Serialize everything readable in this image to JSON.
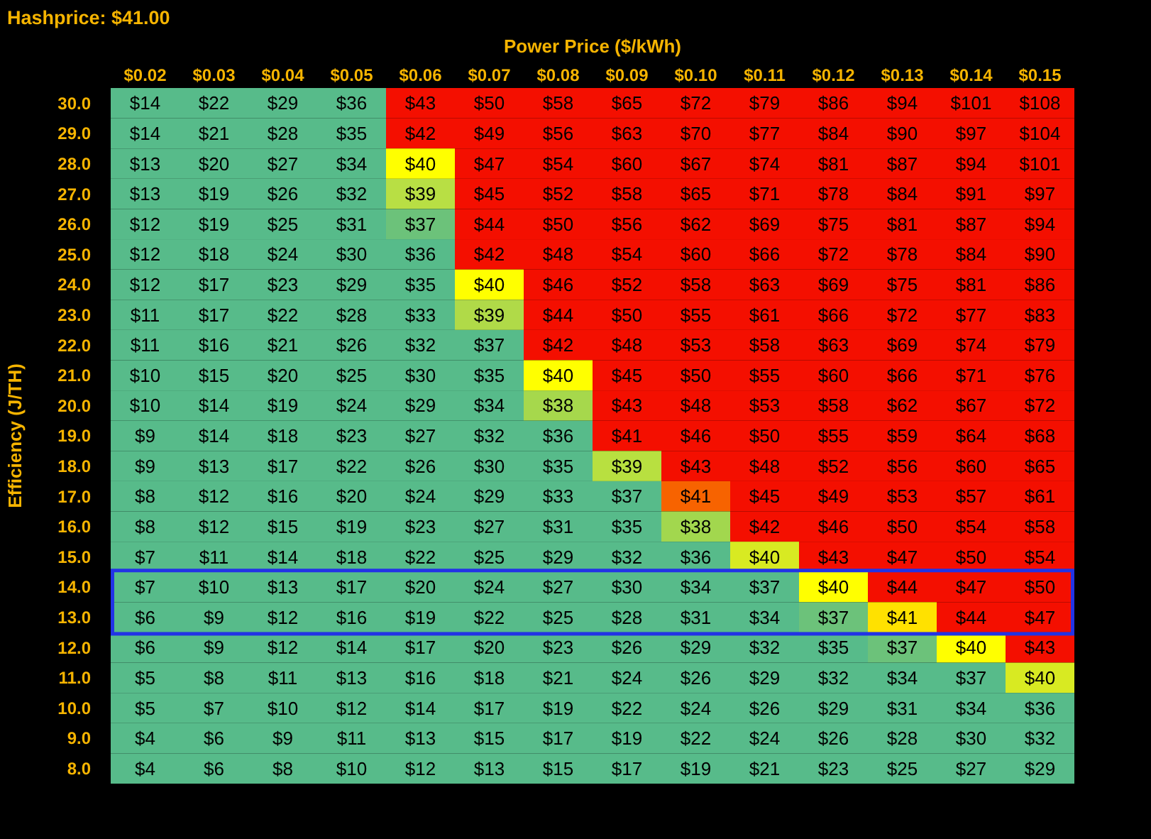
{
  "chart_data": {
    "type": "heatmap",
    "title": "Hashprice: $41.00",
    "xlabel": "Power Price ($/kWh)",
    "ylabel": "Efficiency (J/TH)",
    "categories": [
      "$0.02",
      "$0.03",
      "$0.04",
      "$0.05",
      "$0.06",
      "$0.07",
      "$0.08",
      "$0.09",
      "$0.10",
      "$0.11",
      "$0.12",
      "$0.13",
      "$0.14",
      "$0.15"
    ],
    "y_categories": [
      "30.0",
      "29.0",
      "28.0",
      "27.0",
      "26.0",
      "25.0",
      "24.0",
      "23.0",
      "22.0",
      "21.0",
      "20.0",
      "19.0",
      "18.0",
      "17.0",
      "16.0",
      "15.0",
      "14.0",
      "13.0",
      "12.0",
      "11.0",
      "10.0",
      "9.0",
      "8.0"
    ],
    "cells": [
      [
        14,
        22,
        29,
        36,
        43,
        50,
        58,
        65,
        72,
        79,
        86,
        94,
        101,
        108
      ],
      [
        14,
        21,
        28,
        35,
        42,
        49,
        56,
        63,
        70,
        77,
        84,
        90,
        97,
        104
      ],
      [
        13,
        20,
        27,
        34,
        40,
        47,
        54,
        60,
        67,
        74,
        81,
        87,
        94,
        101
      ],
      [
        13,
        19,
        26,
        32,
        39,
        45,
        52,
        58,
        65,
        71,
        78,
        84,
        91,
        97
      ],
      [
        12,
        19,
        25,
        31,
        37,
        44,
        50,
        56,
        62,
        69,
        75,
        81,
        87,
        94
      ],
      [
        12,
        18,
        24,
        30,
        36,
        42,
        48,
        54,
        60,
        66,
        72,
        78,
        84,
        90
      ],
      [
        12,
        17,
        23,
        29,
        35,
        40,
        46,
        52,
        58,
        63,
        69,
        75,
        81,
        86
      ],
      [
        11,
        17,
        22,
        28,
        33,
        39,
        44,
        50,
        55,
        61,
        66,
        72,
        77,
        83
      ],
      [
        11,
        16,
        21,
        26,
        32,
        37,
        42,
        48,
        53,
        58,
        63,
        69,
        74,
        79
      ],
      [
        10,
        15,
        20,
        25,
        30,
        35,
        40,
        45,
        50,
        55,
        60,
        66,
        71,
        76
      ],
      [
        10,
        14,
        19,
        24,
        29,
        34,
        38,
        43,
        48,
        53,
        58,
        62,
        67,
        72
      ],
      [
        9,
        14,
        18,
        23,
        27,
        32,
        36,
        41,
        46,
        50,
        55,
        59,
        64,
        68
      ],
      [
        9,
        13,
        17,
        22,
        26,
        30,
        35,
        39,
        43,
        48,
        52,
        56,
        60,
        65
      ],
      [
        8,
        12,
        16,
        20,
        24,
        29,
        33,
        37,
        41,
        45,
        49,
        53,
        57,
        61
      ],
      [
        8,
        12,
        15,
        19,
        23,
        27,
        31,
        35,
        38,
        42,
        46,
        50,
        54,
        58
      ],
      [
        7,
        11,
        14,
        18,
        22,
        25,
        29,
        32,
        36,
        40,
        43,
        47,
        50,
        54
      ],
      [
        7,
        10,
        13,
        17,
        20,
        24,
        27,
        30,
        34,
        37,
        40,
        44,
        47,
        50
      ],
      [
        6,
        9,
        12,
        16,
        19,
        22,
        25,
        28,
        31,
        34,
        37,
        41,
        44,
        47
      ],
      [
        6,
        9,
        12,
        14,
        17,
        20,
        23,
        26,
        29,
        32,
        35,
        37,
        40,
        43
      ],
      [
        5,
        8,
        11,
        13,
        16,
        18,
        21,
        24,
        26,
        29,
        32,
        34,
        37,
        40
      ],
      [
        5,
        7,
        10,
        12,
        14,
        17,
        19,
        22,
        24,
        26,
        29,
        31,
        34,
        36
      ],
      [
        4,
        6,
        9,
        11,
        13,
        15,
        17,
        19,
        22,
        24,
        26,
        28,
        30,
        32
      ],
      [
        4,
        6,
        8,
        10,
        12,
        13,
        15,
        17,
        19,
        21,
        23,
        25,
        27,
        29
      ]
    ],
    "cell_labels": [
      [
        "$14",
        "$22",
        "$29",
        "$36",
        "$43",
        "$50",
        "$58",
        "$65",
        "$72",
        "$79",
        "$86",
        "$94",
        "$101",
        "$108"
      ],
      [
        "$14",
        "$21",
        "$28",
        "$35",
        "$42",
        "$49",
        "$56",
        "$63",
        "$70",
        "$77",
        "$84",
        "$90",
        "$97",
        "$104"
      ],
      [
        "$13",
        "$20",
        "$27",
        "$34",
        "$40",
        "$47",
        "$54",
        "$60",
        "$67",
        "$74",
        "$81",
        "$87",
        "$94",
        "$101"
      ],
      [
        "$13",
        "$19",
        "$26",
        "$32",
        "$39",
        "$45",
        "$52",
        "$58",
        "$65",
        "$71",
        "$78",
        "$84",
        "$91",
        "$97"
      ],
      [
        "$12",
        "$19",
        "$25",
        "$31",
        "$37",
        "$44",
        "$50",
        "$56",
        "$62",
        "$69",
        "$75",
        "$81",
        "$87",
        "$94"
      ],
      [
        "$12",
        "$18",
        "$24",
        "$30",
        "$36",
        "$42",
        "$48",
        "$54",
        "$60",
        "$66",
        "$72",
        "$78",
        "$84",
        "$90"
      ],
      [
        "$12",
        "$17",
        "$23",
        "$29",
        "$35",
        "$40",
        "$46",
        "$52",
        "$58",
        "$63",
        "$69",
        "$75",
        "$81",
        "$86"
      ],
      [
        "$11",
        "$17",
        "$22",
        "$28",
        "$33",
        "$39",
        "$44",
        "$50",
        "$55",
        "$61",
        "$66",
        "$72",
        "$77",
        "$83"
      ],
      [
        "$11",
        "$16",
        "$21",
        "$26",
        "$32",
        "$37",
        "$42",
        "$48",
        "$53",
        "$58",
        "$63",
        "$69",
        "$74",
        "$79"
      ],
      [
        "$10",
        "$15",
        "$20",
        "$25",
        "$30",
        "$35",
        "$40",
        "$45",
        "$50",
        "$55",
        "$60",
        "$66",
        "$71",
        "$76"
      ],
      [
        "$10",
        "$14",
        "$19",
        "$24",
        "$29",
        "$34",
        "$38",
        "$43",
        "$48",
        "$53",
        "$58",
        "$62",
        "$67",
        "$72"
      ],
      [
        "$9",
        "$14",
        "$18",
        "$23",
        "$27",
        "$32",
        "$36",
        "$41",
        "$46",
        "$50",
        "$55",
        "$59",
        "$64",
        "$68"
      ],
      [
        "$9",
        "$13",
        "$17",
        "$22",
        "$26",
        "$30",
        "$35",
        "$39",
        "$43",
        "$48",
        "$52",
        "$56",
        "$60",
        "$65"
      ],
      [
        "$8",
        "$12",
        "$16",
        "$20",
        "$24",
        "$29",
        "$33",
        "$37",
        "$41",
        "$45",
        "$49",
        "$53",
        "$57",
        "$61"
      ],
      [
        "$8",
        "$12",
        "$15",
        "$19",
        "$23",
        "$27",
        "$31",
        "$35",
        "$38",
        "$42",
        "$46",
        "$50",
        "$54",
        "$58"
      ],
      [
        "$7",
        "$11",
        "$14",
        "$18",
        "$22",
        "$25",
        "$29",
        "$32",
        "$36",
        "$40",
        "$43",
        "$47",
        "$50",
        "$54"
      ],
      [
        "$7",
        "$10",
        "$13",
        "$17",
        "$20",
        "$24",
        "$27",
        "$30",
        "$34",
        "$37",
        "$40",
        "$44",
        "$47",
        "$50"
      ],
      [
        "$6",
        "$9",
        "$12",
        "$16",
        "$19",
        "$22",
        "$25",
        "$28",
        "$31",
        "$34",
        "$37",
        "$41",
        "$44",
        "$47"
      ],
      [
        "$6",
        "$9",
        "$12",
        "$14",
        "$17",
        "$20",
        "$23",
        "$26",
        "$29",
        "$32",
        "$35",
        "$37",
        "$40",
        "$43"
      ],
      [
        "$5",
        "$8",
        "$11",
        "$13",
        "$16",
        "$18",
        "$21",
        "$24",
        "$26",
        "$29",
        "$32",
        "$34",
        "$37",
        "$40"
      ],
      [
        "$5",
        "$7",
        "$10",
        "$12",
        "$14",
        "$17",
        "$19",
        "$22",
        "$24",
        "$26",
        "$29",
        "$31",
        "$34",
        "$36"
      ],
      [
        "$4",
        "$6",
        "$9",
        "$11",
        "$13",
        "$15",
        "$17",
        "$19",
        "$22",
        "$24",
        "$26",
        "$28",
        "$30",
        "$32"
      ],
      [
        "$4",
        "$6",
        "$8",
        "$10",
        "$12",
        "$13",
        "$15",
        "$17",
        "$19",
        "$21",
        "$23",
        "$25",
        "$27",
        "$29"
      ]
    ],
    "colors": [
      [
        "#57bb8a",
        "#57bb8a",
        "#57bb8a",
        "#57bb8a",
        "#f40f00",
        "#f40f00",
        "#f40f00",
        "#f40f00",
        "#f40f00",
        "#f40f00",
        "#f40f00",
        "#f40f00",
        "#f40f00",
        "#f40f00"
      ],
      [
        "#57bb8a",
        "#57bb8a",
        "#57bb8a",
        "#57bb8a",
        "#f40f00",
        "#f40f00",
        "#f40f00",
        "#f40f00",
        "#f40f00",
        "#f40f00",
        "#f40f00",
        "#f40f00",
        "#f40f00",
        "#f40f00"
      ],
      [
        "#57bb8a",
        "#57bb8a",
        "#57bb8a",
        "#57bb8a",
        "#ffff00",
        "#f40f00",
        "#f40f00",
        "#f40f00",
        "#f40f00",
        "#f40f00",
        "#f40f00",
        "#f40f00",
        "#f40f00",
        "#f40f00"
      ],
      [
        "#57bb8a",
        "#57bb8a",
        "#57bb8a",
        "#57bb8a",
        "#b8df44",
        "#f40f00",
        "#f40f00",
        "#f40f00",
        "#f40f00",
        "#f40f00",
        "#f40f00",
        "#f40f00",
        "#f40f00",
        "#f40f00"
      ],
      [
        "#57bb8a",
        "#57bb8a",
        "#57bb8a",
        "#57bb8a",
        "#6cc27a",
        "#f40f00",
        "#f40f00",
        "#f40f00",
        "#f40f00",
        "#f40f00",
        "#f40f00",
        "#f40f00",
        "#f40f00",
        "#f40f00"
      ],
      [
        "#57bb8a",
        "#57bb8a",
        "#57bb8a",
        "#57bb8a",
        "#57bb8a",
        "#f40f00",
        "#f40f00",
        "#f40f00",
        "#f40f00",
        "#f40f00",
        "#f40f00",
        "#f40f00",
        "#f40f00",
        "#f40f00"
      ],
      [
        "#57bb8a",
        "#57bb8a",
        "#57bb8a",
        "#57bb8a",
        "#57bb8a",
        "#ffff00",
        "#f40f00",
        "#f40f00",
        "#f40f00",
        "#f40f00",
        "#f40f00",
        "#f40f00",
        "#f40f00",
        "#f40f00"
      ],
      [
        "#57bb8a",
        "#57bb8a",
        "#57bb8a",
        "#57bb8a",
        "#57bb8a",
        "#b0da48",
        "#f40f00",
        "#f40f00",
        "#f40f00",
        "#f40f00",
        "#f40f00",
        "#f40f00",
        "#f40f00",
        "#f40f00"
      ],
      [
        "#57bb8a",
        "#57bb8a",
        "#57bb8a",
        "#57bb8a",
        "#57bb8a",
        "#57bb8a",
        "#f40f00",
        "#f40f00",
        "#f40f00",
        "#f40f00",
        "#f40f00",
        "#f40f00",
        "#f40f00",
        "#f40f00"
      ],
      [
        "#57bb8a",
        "#57bb8a",
        "#57bb8a",
        "#57bb8a",
        "#57bb8a",
        "#57bb8a",
        "#ffff00",
        "#f40f00",
        "#f40f00",
        "#f40f00",
        "#f40f00",
        "#f40f00",
        "#f40f00",
        "#f40f00"
      ],
      [
        "#57bb8a",
        "#57bb8a",
        "#57bb8a",
        "#57bb8a",
        "#57bb8a",
        "#57bb8a",
        "#a6d84c",
        "#f40f00",
        "#f40f00",
        "#f40f00",
        "#f40f00",
        "#f40f00",
        "#f40f00",
        "#f40f00"
      ],
      [
        "#57bb8a",
        "#57bb8a",
        "#57bb8a",
        "#57bb8a",
        "#57bb8a",
        "#57bb8a",
        "#57bb8a",
        "#f40f00",
        "#f40f00",
        "#f40f00",
        "#f40f00",
        "#f40f00",
        "#f40f00",
        "#f40f00"
      ],
      [
        "#57bb8a",
        "#57bb8a",
        "#57bb8a",
        "#57bb8a",
        "#57bb8a",
        "#57bb8a",
        "#57bb8a",
        "#b8e040",
        "#f40f00",
        "#f40f00",
        "#f40f00",
        "#f40f00",
        "#f40f00",
        "#f40f00"
      ],
      [
        "#57bb8a",
        "#57bb8a",
        "#57bb8a",
        "#57bb8a",
        "#57bb8a",
        "#57bb8a",
        "#57bb8a",
        "#57bb8a",
        "#f76300",
        "#f40f00",
        "#f40f00",
        "#f40f00",
        "#f40f00",
        "#f40f00"
      ],
      [
        "#57bb8a",
        "#57bb8a",
        "#57bb8a",
        "#57bb8a",
        "#57bb8a",
        "#57bb8a",
        "#57bb8a",
        "#57bb8a",
        "#a2d74e",
        "#f40f00",
        "#f40f00",
        "#f40f00",
        "#f40f00",
        "#f40f00"
      ],
      [
        "#57bb8a",
        "#57bb8a",
        "#57bb8a",
        "#57bb8a",
        "#57bb8a",
        "#57bb8a",
        "#57bb8a",
        "#57bb8a",
        "#57bb8a",
        "#d8ea22",
        "#f40f00",
        "#f40f00",
        "#f40f00",
        "#f40f00"
      ],
      [
        "#57bb8a",
        "#57bb8a",
        "#57bb8a",
        "#57bb8a",
        "#57bb8a",
        "#57bb8a",
        "#57bb8a",
        "#57bb8a",
        "#57bb8a",
        "#57bb8a",
        "#ffff00",
        "#f40f00",
        "#f40f00",
        "#f40f00"
      ],
      [
        "#57bb8a",
        "#57bb8a",
        "#57bb8a",
        "#57bb8a",
        "#57bb8a",
        "#57bb8a",
        "#57bb8a",
        "#57bb8a",
        "#57bb8a",
        "#57bb8a",
        "#6cc27a",
        "#ffe100",
        "#f40f00",
        "#f40f00"
      ],
      [
        "#57bb8a",
        "#57bb8a",
        "#57bb8a",
        "#57bb8a",
        "#57bb8a",
        "#57bb8a",
        "#57bb8a",
        "#57bb8a",
        "#57bb8a",
        "#57bb8a",
        "#57bb8a",
        "#6cc27a",
        "#ffff00",
        "#f40f00"
      ],
      [
        "#57bb8a",
        "#57bb8a",
        "#57bb8a",
        "#57bb8a",
        "#57bb8a",
        "#57bb8a",
        "#57bb8a",
        "#57bb8a",
        "#57bb8a",
        "#57bb8a",
        "#57bb8a",
        "#57bb8a",
        "#57bb8a",
        "#d8ea22"
      ],
      [
        "#57bb8a",
        "#57bb8a",
        "#57bb8a",
        "#57bb8a",
        "#57bb8a",
        "#57bb8a",
        "#57bb8a",
        "#57bb8a",
        "#57bb8a",
        "#57bb8a",
        "#57bb8a",
        "#57bb8a",
        "#57bb8a",
        "#57bb8a"
      ],
      [
        "#57bb8a",
        "#57bb8a",
        "#57bb8a",
        "#57bb8a",
        "#57bb8a",
        "#57bb8a",
        "#57bb8a",
        "#57bb8a",
        "#57bb8a",
        "#57bb8a",
        "#57bb8a",
        "#57bb8a",
        "#57bb8a",
        "#57bb8a"
      ],
      [
        "#57bb8a",
        "#57bb8a",
        "#57bb8a",
        "#57bb8a",
        "#57bb8a",
        "#57bb8a",
        "#57bb8a",
        "#57bb8a",
        "#57bb8a",
        "#57bb8a",
        "#57bb8a",
        "#57bb8a",
        "#57bb8a",
        "#57bb8a"
      ]
    ]
  }
}
